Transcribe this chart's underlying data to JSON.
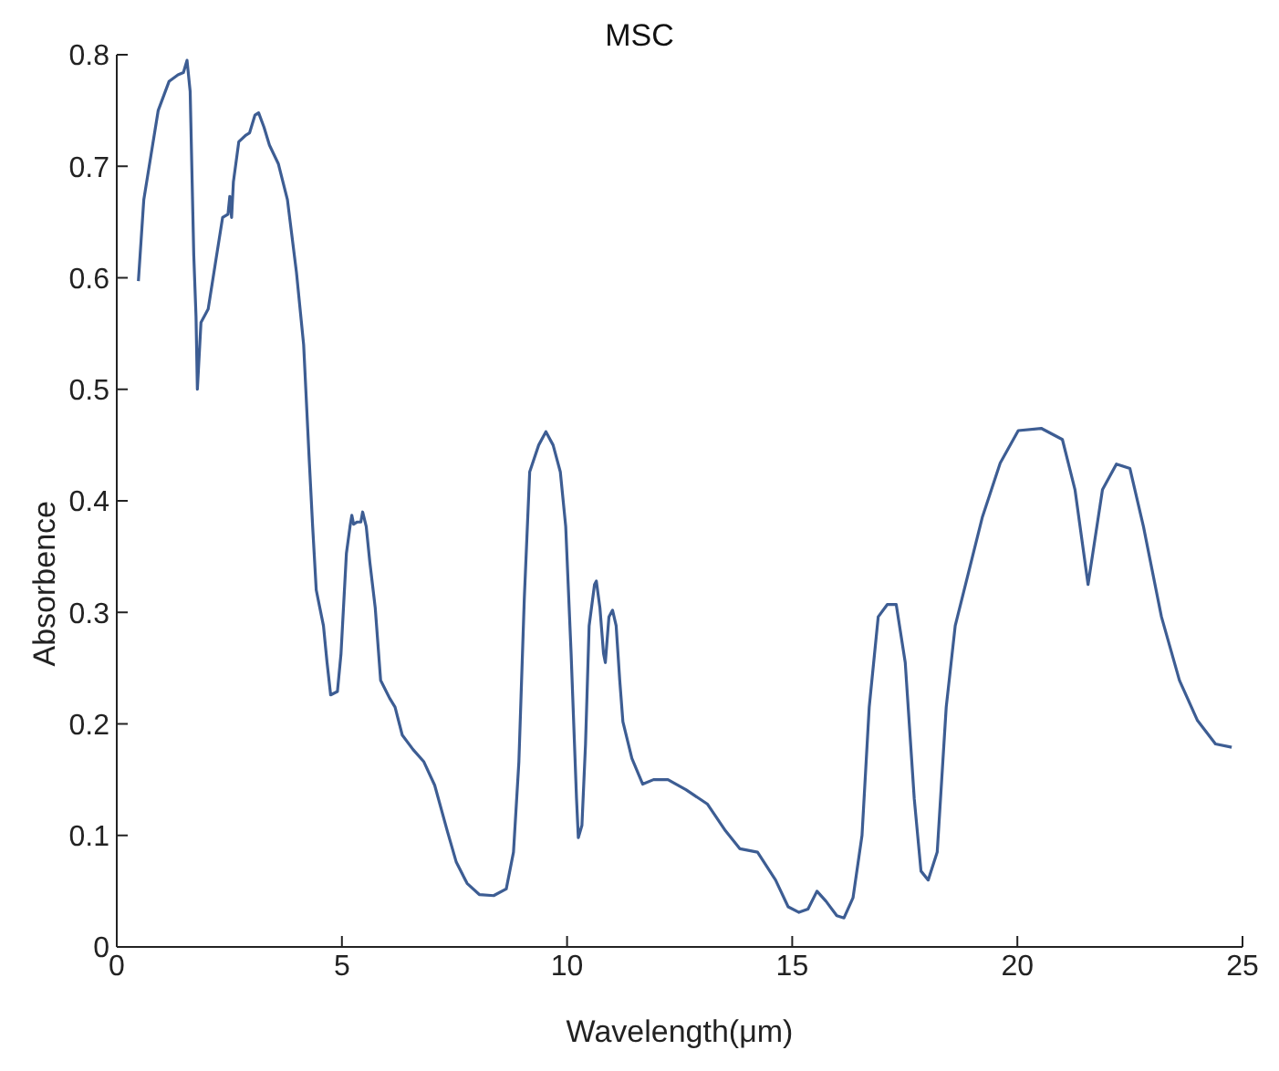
{
  "chart_data": {
    "type": "line",
    "title": "MSC",
    "xlabel": "Wavelength(μm)",
    "ylabel": "Absorbence",
    "xlim": [
      0,
      25
    ],
    "xticks": [
      0,
      5,
      10,
      15,
      20,
      25
    ],
    "ylim": [
      0,
      0.8
    ],
    "yticks": [
      0,
      0.1,
      0.2,
      0.3,
      0.4,
      0.5,
      0.6,
      0.7,
      0.8
    ],
    "marker": "none",
    "line_style": "solid",
    "series": [
      {
        "color": "#3d5d93",
        "x": [
          0.48,
          0.6,
          0.76,
          0.92,
          1.16,
          1.36,
          1.48,
          1.56,
          1.63,
          1.71,
          1.76,
          1.79,
          1.87,
          2.03,
          2.19,
          2.35,
          2.47,
          2.51,
          2.55,
          2.59,
          2.71,
          2.87,
          2.95,
          3.07,
          3.15,
          3.27,
          3.39,
          3.59,
          3.79,
          3.99,
          4.15,
          4.27,
          4.35,
          4.43,
          4.51,
          4.59,
          4.67,
          4.75,
          4.9,
          4.98,
          5.1,
          5.18,
          5.22,
          5.26,
          5.34,
          5.42,
          5.46,
          5.54,
          5.62,
          5.74,
          5.86,
          6.06,
          6.18,
          6.34,
          6.58,
          6.82,
          7.06,
          7.34,
          7.54,
          7.78,
          8.05,
          8.37,
          8.65,
          8.81,
          8.93,
          9.05,
          9.17,
          9.37,
          9.53,
          9.69,
          9.85,
          9.97,
          10.09,
          10.21,
          10.25,
          10.33,
          10.41,
          10.49,
          10.61,
          10.65,
          10.73,
          10.81,
          10.85,
          10.93,
          11.01,
          11.09,
          11.17,
          11.24,
          11.44,
          11.68,
          11.92,
          12.24,
          12.64,
          13.12,
          13.52,
          13.84,
          14.23,
          14.63,
          14.91,
          15.15,
          15.35,
          15.55,
          15.75,
          15.99,
          16.15,
          16.35,
          16.55,
          16.71,
          16.91,
          17.11,
          17.31,
          17.51,
          17.71,
          17.86,
          18.02,
          18.22,
          18.42,
          18.62,
          19.22,
          19.62,
          20.02,
          20.53,
          21.0,
          21.28,
          21.57,
          21.89,
          22.2,
          22.5,
          22.8,
          23.2,
          23.6,
          24.0,
          24.4,
          24.76
        ],
        "values": [
          0.597,
          0.67,
          0.71,
          0.75,
          0.776,
          0.782,
          0.784,
          0.795,
          0.767,
          0.62,
          0.565,
          0.5,
          0.56,
          0.572,
          0.613,
          0.654,
          0.657,
          0.673,
          0.654,
          0.686,
          0.722,
          0.728,
          0.73,
          0.746,
          0.748,
          0.735,
          0.719,
          0.702,
          0.67,
          0.605,
          0.54,
          0.44,
          0.377,
          0.32,
          0.304,
          0.288,
          0.255,
          0.226,
          0.229,
          0.263,
          0.353,
          0.377,
          0.387,
          0.379,
          0.381,
          0.381,
          0.39,
          0.377,
          0.345,
          0.304,
          0.239,
          0.223,
          0.215,
          0.19,
          0.177,
          0.166,
          0.145,
          0.104,
          0.076,
          0.057,
          0.047,
          0.046,
          0.052,
          0.085,
          0.166,
          0.312,
          0.426,
          0.45,
          0.462,
          0.45,
          0.426,
          0.377,
          0.263,
          0.133,
          0.098,
          0.109,
          0.182,
          0.288,
          0.325,
          0.328,
          0.304,
          0.263,
          0.255,
          0.296,
          0.302,
          0.288,
          0.239,
          0.202,
          0.169,
          0.146,
          0.15,
          0.15,
          0.141,
          0.128,
          0.104,
          0.088,
          0.085,
          0.06,
          0.036,
          0.031,
          0.034,
          0.05,
          0.041,
          0.028,
          0.026,
          0.044,
          0.1,
          0.215,
          0.296,
          0.307,
          0.307,
          0.255,
          0.133,
          0.068,
          0.06,
          0.085,
          0.215,
          0.288,
          0.385,
          0.434,
          0.463,
          0.465,
          0.455,
          0.41,
          0.325,
          0.41,
          0.433,
          0.429,
          0.377,
          0.296,
          0.239,
          0.203,
          0.182,
          0.179
        ]
      }
    ]
  }
}
